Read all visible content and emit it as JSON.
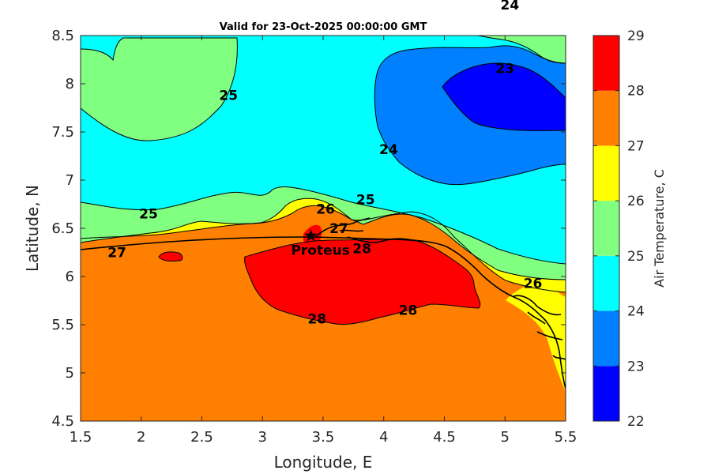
{
  "chart_data": {
    "type": "contour",
    "title": "Valid for 23-Oct-2025 00:00:00 GMT",
    "xlabel": "Longitude, E",
    "ylabel": "Latitude, N",
    "xlim": [
      1.5,
      5.5
    ],
    "ylim": [
      4.5,
      8.5
    ],
    "xticks": [
      "1.5",
      "2",
      "2.5",
      "3",
      "3.5",
      "4",
      "4.5",
      "5",
      "5.5"
    ],
    "yticks": [
      "4.5",
      "5",
      "5.5",
      "6",
      "6.5",
      "7",
      "7.5",
      "8",
      "8.5"
    ],
    "colorbar": {
      "label": "Air Temperature, C",
      "ticks": [
        "22",
        "23",
        "24",
        "25",
        "26",
        "27",
        "28",
        "29"
      ],
      "levels": [
        22,
        23,
        24,
        25,
        26,
        27,
        28,
        29
      ],
      "colors": [
        "#0000ff",
        "#0080ff",
        "#00ffff",
        "#80ff80",
        "#ffff00",
        "#ff8000",
        "#ff0000",
        "#800000"
      ]
    },
    "contour_labels": [
      {
        "text": "24",
        "lon": 5.04,
        "lat": 8.82
      },
      {
        "text": "23",
        "lon": 5.0,
        "lat": 8.16
      },
      {
        "text": "25",
        "lon": 2.72,
        "lat": 7.88
      },
      {
        "text": "24",
        "lon": 4.04,
        "lat": 7.32
      },
      {
        "text": "25",
        "lon": 2.06,
        "lat": 6.65
      },
      {
        "text": "26",
        "lon": 3.52,
        "lat": 6.7
      },
      {
        "text": "25",
        "lon": 3.85,
        "lat": 6.8
      },
      {
        "text": "27",
        "lon": 3.63,
        "lat": 6.5
      },
      {
        "text": "27",
        "lon": 1.8,
        "lat": 6.25
      },
      {
        "text": "28",
        "lon": 3.82,
        "lat": 6.29
      },
      {
        "text": "28",
        "lon": 3.45,
        "lat": 5.56
      },
      {
        "text": "28",
        "lon": 4.2,
        "lat": 5.65
      },
      {
        "text": "26",
        "lon": 5.23,
        "lat": 5.93
      }
    ],
    "station": {
      "name": "Proteus",
      "lon": 3.4,
      "lat": 6.43
    }
  }
}
